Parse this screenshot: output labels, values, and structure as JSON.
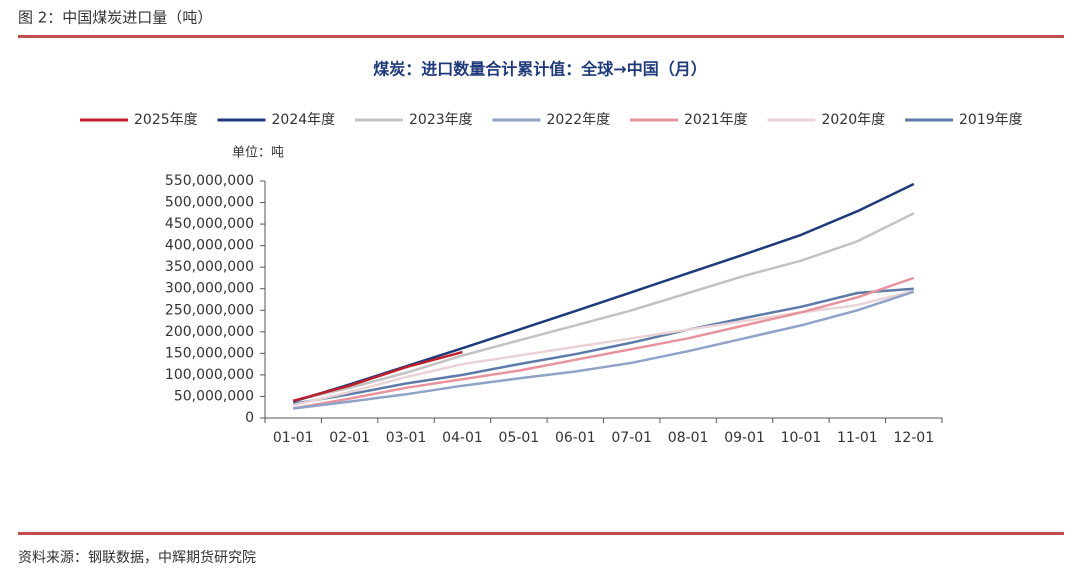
{
  "header": "图 2：中国煤炭进口量（吨）",
  "source": "资料来源：钢联数据，中辉期货研究院",
  "chart_data": {
    "type": "line",
    "title": "煤炭：进口数量合计累计值：全球→中国（月）",
    "unit_label": "单位：吨",
    "categories": [
      "01-01",
      "02-01",
      "03-01",
      "04-01",
      "05-01",
      "06-01",
      "07-01",
      "08-01",
      "09-01",
      "10-01",
      "11-01",
      "12-01"
    ],
    "ylim": [
      0,
      550000000
    ],
    "yticks": [
      0,
      {
        "value": 50000000,
        "label": "50,000,000"
      },
      {
        "value": 100000000,
        "label": "100,000,000"
      },
      {
        "value": 150000000,
        "label": "150,000,000"
      },
      {
        "value": 200000000,
        "label": "200,000,000"
      },
      {
        "value": 250000000,
        "label": "250,000,000"
      },
      {
        "value": 300000000,
        "label": "300,000,000"
      },
      {
        "value": 350000000,
        "label": "350,000,000"
      },
      {
        "value": 400000000,
        "label": "400,000,000"
      },
      {
        "value": 450000000,
        "label": "450,000,000"
      },
      {
        "value": 500000000,
        "label": "500,000,000"
      },
      {
        "value": 550000000,
        "label": "550,000,000"
      }
    ],
    "legend": "top",
    "series": [
      {
        "name": "2025年度",
        "color": "#c0202a",
        "values": [
          40000000,
          75000000,
          118000000,
          153000000,
          null,
          null,
          null,
          null,
          null,
          null,
          null,
          null
        ]
      },
      {
        "name": "2024年度",
        "color": "#1f3a7a",
        "values": [
          38000000,
          78000000,
          120000000,
          162000000,
          205000000,
          248000000,
          292000000,
          336000000,
          380000000,
          425000000,
          480000000,
          543000000
        ]
      },
      {
        "name": "2023年度",
        "color": "#c2c2c2",
        "values": [
          40000000,
          70000000,
          105000000,
          145000000,
          180000000,
          215000000,
          250000000,
          290000000,
          330000000,
          365000000,
          410000000,
          475000000
        ]
      },
      {
        "name": "2022年度",
        "color": "#8fa3c8",
        "values": [
          22000000,
          38000000,
          55000000,
          75000000,
          92000000,
          108000000,
          128000000,
          155000000,
          185000000,
          215000000,
          250000000,
          293000000
        ]
      },
      {
        "name": "2021年度",
        "color": "#e8939c",
        "values": [
          22000000,
          45000000,
          70000000,
          90000000,
          110000000,
          135000000,
          160000000,
          185000000,
          215000000,
          245000000,
          280000000,
          325000000
        ]
      },
      {
        "name": "2020年度",
        "color": "#ead3d4",
        "values": [
          30000000,
          60000000,
          95000000,
          125000000,
          145000000,
          165000000,
          185000000,
          205000000,
          225000000,
          245000000,
          262000000,
          295000000
        ]
      },
      {
        "name": "2019年度",
        "color": "#5b7aa8",
        "values": [
          33000000,
          55000000,
          80000000,
          100000000,
          125000000,
          148000000,
          175000000,
          205000000,
          232000000,
          258000000,
          290000000,
          300000000
        ]
      }
    ]
  }
}
